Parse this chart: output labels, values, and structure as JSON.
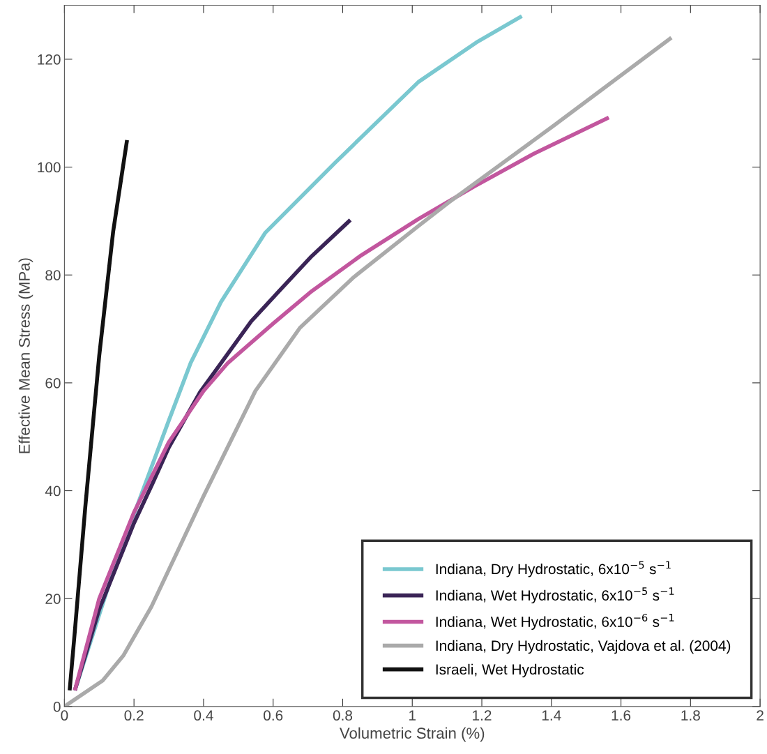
{
  "chart_data": {
    "type": "line",
    "xlabel": "Volumetric Strain (%)",
    "ylabel": "Effective Mean Stress (MPa)",
    "xlim": [
      0,
      2
    ],
    "ylim": [
      0,
      130
    ],
    "xticks": [
      0,
      0.2,
      0.4,
      0.6,
      0.8,
      1,
      1.2,
      1.4,
      1.6,
      1.8,
      2
    ],
    "yticks": [
      0,
      20,
      40,
      60,
      80,
      100,
      120
    ],
    "grid": false,
    "legend": "bottom right",
    "marker": "none",
    "line_style": "solid",
    "series": [
      {
        "name": "Indiana, Dry Hydrostatic, 6x10$^{−5}$ s$^{−1}$",
        "color": "#7ac8d0",
        "x": [
          0.03,
          0.1,
          0.15,
          0.217,
          0.3,
          0.363,
          0.45,
          0.577,
          0.778,
          1.018,
          1.184,
          1.315
        ],
        "values": [
          3,
          17,
          27,
          38.6,
          53,
          63.7,
          75,
          87.8,
          100.8,
          115.8,
          123.1,
          128
        ]
      },
      {
        "name": "Indiana, Wet Hydrostatic, 6x10$^{−5}$ s$^{−1}$",
        "color": "#3a2456",
        "x": [
          0.03,
          0.1,
          0.2,
          0.253,
          0.3,
          0.39,
          0.537,
          0.617,
          0.711,
          0.822
        ],
        "values": [
          3,
          18,
          34,
          41.3,
          48,
          58.3,
          71.4,
          77,
          83.5,
          90.2
        ]
      },
      {
        "name": "Indiana, Wet Hydrostatic, 6x10$^{−6}$ s$^{−1}$",
        "color": "#c2569e",
        "x": [
          0.03,
          0.1,
          0.2,
          0.3,
          0.4,
          0.47,
          0.6,
          0.711,
          0.85,
          1.018,
          1.178,
          1.35,
          1.565
        ],
        "values": [
          3,
          20,
          36,
          49,
          58.5,
          63.7,
          71,
          77,
          83.5,
          90.4,
          96.4,
          102.5,
          109.2
        ]
      },
      {
        "name": "Indiana, Dry Hydrostatic, Vajdova et al. (2004)",
        "color": "#aaaaaa",
        "x": [
          0,
          0.11,
          0.17,
          0.25,
          0.4,
          0.549,
          0.677,
          0.832,
          1.018,
          1.104,
          1.405,
          1.745
        ],
        "values": [
          0,
          4.8,
          9.5,
          18.5,
          39,
          58.5,
          70.2,
          79.6,
          89.1,
          93.4,
          107.6,
          124
        ]
      },
      {
        "name": "Israeli, Wet Hydrostatic",
        "color": "#111111",
        "x": [
          0.015,
          0.03,
          0.06,
          0.1,
          0.14,
          0.18
        ],
        "values": [
          3,
          14,
          37,
          65,
          88,
          105
        ]
      }
    ]
  }
}
